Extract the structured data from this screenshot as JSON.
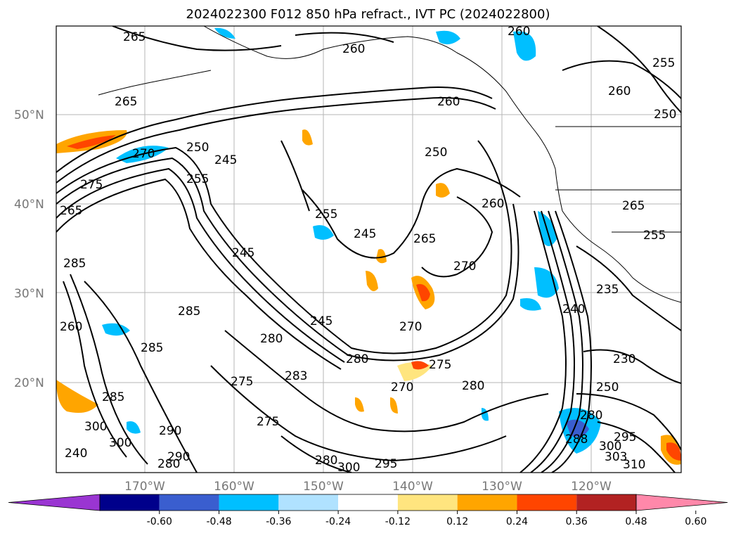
{
  "title": "2024022300 F012 850 hPa refract., IVT PC (2024022800)",
  "lat_labels": [
    "50°N",
    "40°N",
    "30°N",
    "20°N"
  ],
  "lon_labels": [
    "170°W",
    "160°W",
    "150°W",
    "140°W",
    "130°W",
    "120°W"
  ],
  "colorbar": {
    "tick_labels": [
      "-0.60",
      "-0.48",
      "-0.36",
      "-0.24",
      "-0.12",
      "0.12",
      "0.24",
      "0.36",
      "0.48",
      "0.60"
    ],
    "colors": [
      "#9a35d2",
      "#00008b",
      "#3a5ecf",
      "#00bfff",
      "#b0e2ff",
      "#ffffff",
      "#ffe57f",
      "#ffa500",
      "#ff4500",
      "#b22222",
      "#ff88aa"
    ]
  },
  "contour_labels": [
    "265",
    "260",
    "260",
    "255",
    "260",
    "250",
    "265",
    "250",
    "245",
    "250",
    "270",
    "275",
    "260",
    "255",
    "245",
    "265",
    "265",
    "260",
    "265",
    "255",
    "285",
    "255",
    "245",
    "270",
    "235",
    "240",
    "285",
    "260",
    "245",
    "270",
    "285",
    "280",
    "280",
    "275",
    "230",
    "275",
    "283",
    "270",
    "280",
    "250",
    "285",
    "275",
    "280",
    "300",
    "295",
    "290",
    "300",
    "290",
    "280",
    "288",
    "295",
    "300",
    "310",
    "303",
    "300",
    "280",
    "240"
  ]
}
